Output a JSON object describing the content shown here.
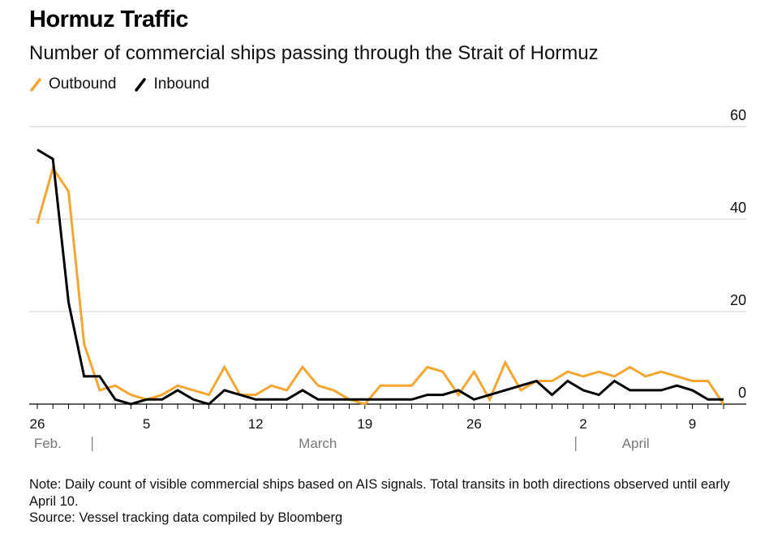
{
  "title": "Hormuz Traffic",
  "subtitle": "Number of commercial ships passing through the Strait of Hormuz",
  "legend": [
    {
      "label": "Outbound",
      "color": "#f5a631"
    },
    {
      "label": "Inbound",
      "color": "#000000"
    }
  ],
  "note": "Note: Daily count of visible commercial ships based on AIS signals. Total transits in both directions observed until early April 10.",
  "source": "Source: Vessel tracking data compiled by Bloomberg",
  "chart_data": {
    "type": "line",
    "title": "Hormuz Traffic",
    "xlabel": "",
    "ylabel": "",
    "ylim": [
      0,
      60
    ],
    "yticks": [
      0,
      20,
      40,
      60
    ],
    "grid": true,
    "x_start_day": 0,
    "x_end_day": 44,
    "x_ticks": [
      {
        "day": 0,
        "label": "26"
      },
      {
        "day": 7,
        "label": "5"
      },
      {
        "day": 14,
        "label": "12"
      },
      {
        "day": 21,
        "label": "19"
      },
      {
        "day": 28,
        "label": "26"
      },
      {
        "day": 35,
        "label": "2"
      },
      {
        "day": 42,
        "label": "9"
      }
    ],
    "month_labels": [
      {
        "day": 0.2,
        "label": "Feb.",
        "anchor": "start"
      },
      {
        "day": 18.4,
        "label": "March",
        "anchor": "middle"
      },
      {
        "day": 37.9,
        "label": "April",
        "anchor": "start"
      }
    ],
    "month_separators": [
      3,
      34
    ],
    "series": [
      {
        "name": "Outbound",
        "color": "#f5a631",
        "values": [
          39,
          51,
          46,
          13,
          3,
          4,
          2,
          1,
          2,
          4,
          3,
          2,
          8,
          2,
          2,
          4,
          3,
          8,
          4,
          3,
          1,
          0,
          4,
          4,
          4,
          8,
          7,
          2,
          7,
          1,
          9,
          3,
          5,
          5,
          7,
          6,
          7,
          6,
          8,
          6,
          7,
          6,
          5,
          5,
          0
        ]
      },
      {
        "name": "Inbound",
        "color": "#000000",
        "values": [
          55,
          53,
          22,
          6,
          6,
          1,
          0,
          1,
          1,
          3,
          1,
          0,
          3,
          2,
          1,
          1,
          1,
          3,
          1,
          1,
          1,
          1,
          1,
          1,
          1,
          2,
          2,
          3,
          1,
          2,
          3,
          4,
          5,
          2,
          5,
          3,
          2,
          5,
          3,
          3,
          3,
          4,
          3,
          1,
          1
        ]
      }
    ]
  }
}
